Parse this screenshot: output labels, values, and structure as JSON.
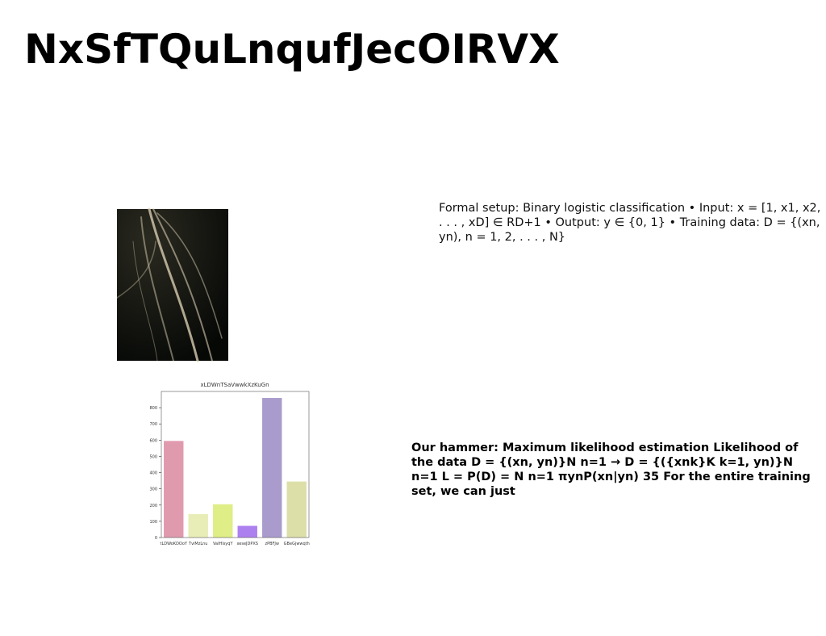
{
  "title": "NxSfTQuLnqufJecOIRVX",
  "text_blocks": [
    "Formal setup: Binary logistic classification • Input: x = [1, x1, x2, . . . , xD] ∈ RD+1 • Output: y ∈ {0, 1} • Training data: D = {(xn, yn), n = 1, 2, . . . , N}",
    "Our hammer: Maximum likelihood estimation Likelihood of the data D = {(xn, yn)}N n=1 → D = {({xnk}K k=1, yn)}N n=1 L = P(D) = N n=1 πynP(xn|yn) 35 For the entire training set, we can just"
  ],
  "chart_data": {
    "type": "bar",
    "title": "xLDWnTSaVwwkXzKuGn",
    "categories": [
      "tLDWoKDOoY",
      "TviMzLnu",
      "VaIHlsyqY",
      "xeseJDPXS",
      "zPBFJw",
      "GBeGjwwqth"
    ],
    "values": [
      595,
      145,
      205,
      72,
      860,
      345
    ],
    "colors": [
      "#e09aae",
      "#e8edb8",
      "#dfee86",
      "#ad80ef",
      "#a99ccc",
      "#dcdfa8"
    ],
    "ylim": [
      0,
      900
    ],
    "yticks": [
      0,
      100,
      200,
      300,
      400,
      500,
      600,
      700,
      800
    ]
  }
}
